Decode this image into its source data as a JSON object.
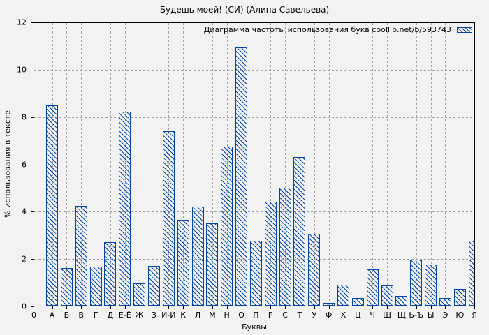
{
  "window": {
    "title": "Будешь моей! (СИ) (Алина Савельева)"
  },
  "colors": {
    "bar": "#0045a8",
    "grid": "#a0a0a0",
    "background": "#f2f2f2",
    "axis": "#000000",
    "text": "#000000"
  },
  "chart_data": {
    "type": "bar",
    "title": "Будешь моей! (СИ) (Алина Савельева)",
    "legend": "Диаграмма частоты использования букв coollib.net/b/593743",
    "legend_position": "top-right-inside",
    "legend_swatch": "blue-diagonal-hatch",
    "xlabel": "Буквы",
    "ylabel": "% использования в тексте",
    "ylim": [
      0,
      12
    ],
    "yticks": [
      0,
      2,
      4,
      6,
      8,
      10,
      12
    ],
    "origin_label": "0",
    "grid": true,
    "bar_style": "blue diagonal hatch on light background",
    "categories": [
      "А",
      "Б",
      "В",
      "Г",
      "Д",
      "Е-Ё",
      "Ж",
      "З",
      "И-Й",
      "К",
      "Л",
      "М",
      "Н",
      "О",
      "П",
      "Р",
      "С",
      "Т",
      "У",
      "Ф",
      "Х",
      "Ц",
      "Ч",
      "Ш",
      "Щ",
      "Ь-Ъ",
      "Ы",
      "Э",
      "Ю",
      "Я"
    ],
    "values": [
      8.5,
      1.6,
      4.25,
      1.65,
      2.7,
      8.25,
      0.95,
      1.7,
      7.4,
      3.65,
      4.2,
      3.5,
      6.75,
      10.95,
      2.75,
      4.4,
      5.0,
      6.3,
      3.05,
      0.13,
      0.9,
      0.33,
      1.55,
      0.85,
      0.4,
      1.95,
      1.75,
      0.33,
      0.72,
      2.75
    ]
  }
}
